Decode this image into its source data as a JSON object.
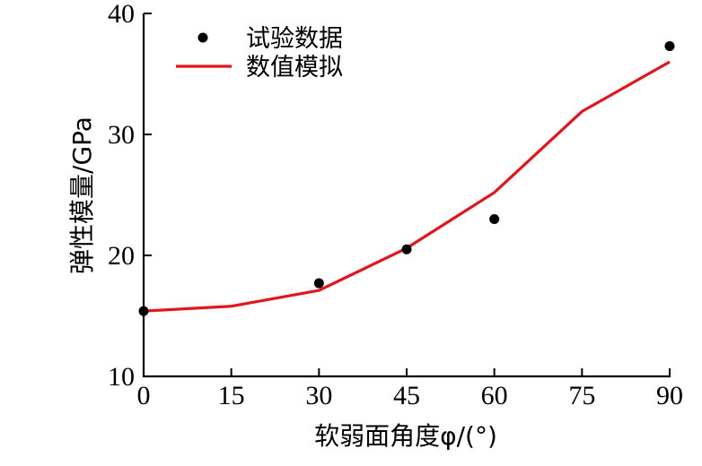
{
  "chart_data": {
    "type": "line",
    "title": "",
    "xlabel": "软弱面角度φ/(°)",
    "ylabel": "弹性模量/GPa",
    "xlim": [
      0,
      90
    ],
    "ylim": [
      10,
      40
    ],
    "xticks": [
      0,
      15,
      30,
      45,
      60,
      75,
      90
    ],
    "yticks": [
      10,
      20,
      30,
      40
    ],
    "xtick_labels": [
      "0",
      "15",
      "30",
      "45",
      "60",
      "75",
      "90"
    ],
    "ytick_labels": [
      "10",
      "20",
      "30",
      "40"
    ],
    "grid": false,
    "legend_position": "top-left",
    "series": [
      {
        "name": "试验数据",
        "kind": "scatter",
        "color": "#000000",
        "x": [
          0,
          30,
          45,
          60,
          90
        ],
        "y": [
          15.4,
          17.7,
          20.5,
          23.0,
          37.3
        ]
      },
      {
        "name": "数值模拟",
        "kind": "line",
        "color": "#e3151b",
        "x": [
          0,
          15,
          30,
          45,
          60,
          75,
          90
        ],
        "y": [
          15.4,
          15.8,
          17.1,
          20.6,
          25.2,
          31.9,
          36.0
        ]
      }
    ]
  }
}
